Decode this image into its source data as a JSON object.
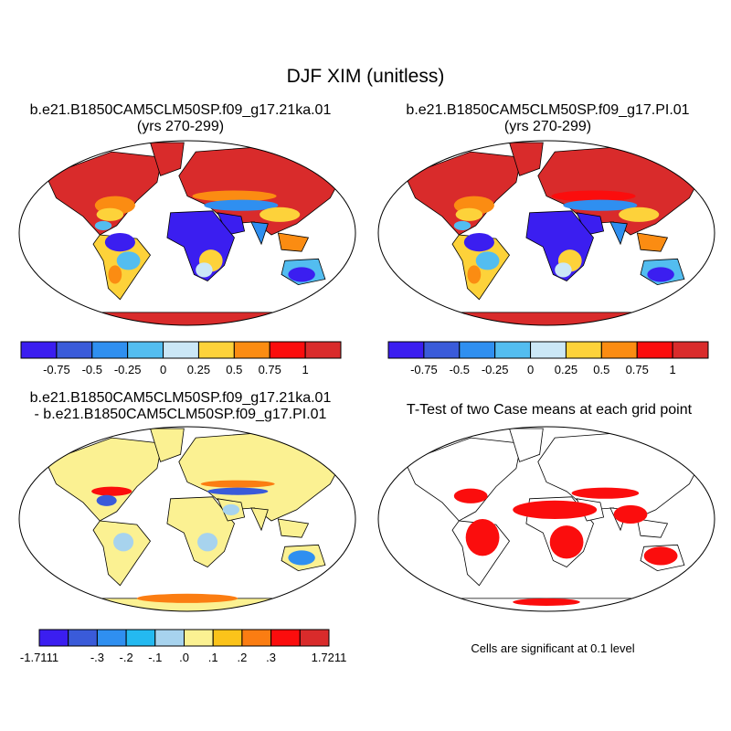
{
  "title": "DJF XIM (unitless)",
  "panels": [
    {
      "name": "case-mean",
      "title_line1": "b.e21.B1850CAM5CLM50SP.f09_g17.21ka.01",
      "title_line2": "(yrs 270-299)"
    },
    {
      "name": "control-mean",
      "title_line1": "b.e21.B1850CAM5CLM50SP.f09_g17.PI.01",
      "title_line2": "(yrs 270-299)"
    },
    {
      "name": "difference",
      "title_line1": "b.e21.B1850CAM5CLM50SP.f09_g17.21ka.01",
      "title_line2": "- b.e21.B1850CAM5CLM50SP.f09_g17.PI.01"
    },
    {
      "name": "t-test",
      "title_line1": "T-Test of two Case means at each grid point",
      "title_line2": ""
    }
  ],
  "significance_note": "Cells are significant at 0.1 level",
  "colorbars": {
    "mean": {
      "colors": [
        "#3b1ef0",
        "#3a5bd9",
        "#2f8ff0",
        "#53bdf0",
        "#cbe7f6",
        "#fdd23a",
        "#fb8c12",
        "#fb0d0d",
        "#d92b2b"
      ],
      "labels": [
        "-0.75",
        "-0.5",
        "-0.25",
        "0",
        "0.25",
        "0.5",
        "0.75",
        "1"
      ]
    },
    "diff": {
      "colors": [
        "#3b1ef0",
        "#3a5bd9",
        "#2f8ff0",
        "#24b9f0",
        "#a7d3ee",
        "#fbf192",
        "#fbc31a",
        "#fb7d12",
        "#fb0d0d",
        "#d92b2b"
      ],
      "labels": [
        "-1.7111",
        "-.3",
        "-.2",
        "-.1",
        ".0",
        ".1",
        ".2",
        ".3",
        "1.7211"
      ]
    }
  },
  "chart_data": {
    "type": "heatmap",
    "variable": "DJF XIM",
    "units": "unitless",
    "mean_levels": [
      -0.75,
      -0.5,
      -0.25,
      0,
      0.25,
      0.5,
      0.75,
      1
    ],
    "diff_levels": [
      -1.7111,
      -0.3,
      -0.2,
      -0.1,
      0.0,
      0.1,
      0.2,
      0.3,
      1.7211
    ],
    "significance_level": 0.1
  }
}
